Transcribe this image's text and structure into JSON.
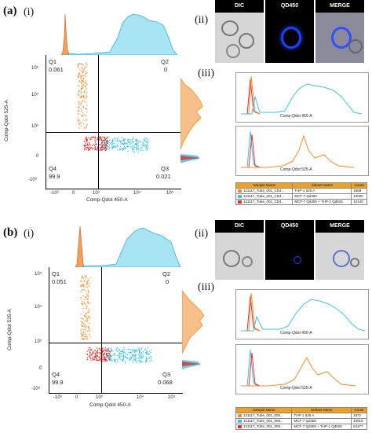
{
  "panel_a": {
    "label": "(a)",
    "label_i": "(i)",
    "label_ii": "(ii)",
    "label_iii": "(iii)",
    "quadrants": {
      "q1": "Q1",
      "q1_val": "0.061",
      "q2": "Q2",
      "q2_val": "0",
      "q3": "Q3",
      "q3_val": "0.021",
      "q4": "Q4",
      "q4_val": "99.9"
    },
    "x_axis_label": "Comp-Qdot 450-A",
    "y_axis_label": "Comp-Qdot 525-A",
    "x_ticks": [
      "-10³",
      "0",
      "10³",
      "10⁴",
      "10⁵"
    ],
    "y_ticks": [
      "10⁵",
      "10⁴",
      "10³",
      "0",
      "-10³"
    ],
    "micro_titles": [
      "DIC",
      "QD450",
      "MERGE"
    ],
    "hist_top_axis": "Comp-Qdot 450-A",
    "hist_bottom_axis": "Comp-Qdot 525-A",
    "table_headers": [
      "Sample Name",
      "Subset Name",
      "Count"
    ],
    "table_rows": [
      {
        "color": "#f08a30",
        "sample": "121117_Tube_001_CD4...",
        "subset": "THP-1 525 A",
        "count": "1868"
      },
      {
        "color": "#3fc0e0",
        "sample": "121117_Tube_001_CD4...",
        "subset": "MCF-7 Qd450",
        "count": "10000"
      },
      {
        "color": "#e03030",
        "sample": "121117_Tube_001_CD4...",
        "subset": "MCF-7 Qd450 + THP-1 Qd525",
        "count": "10140"
      }
    ]
  },
  "panel_b": {
    "label": "(b)",
    "label_i": "(i)",
    "label_ii": "(ii)",
    "label_iii": "(iii)",
    "quadrants": {
      "q1": "Q1",
      "q1_val": "0.051",
      "q2": "Q2",
      "q2_val": "0",
      "q3": "Q3",
      "q3_val": "0.068",
      "q4": "Q4",
      "q4_val": "99.9"
    },
    "x_axis_label": "Comp-Qdot 450-A",
    "y_axis_label": "Comp-Qdot 525-A",
    "x_ticks": [
      "-10³",
      "0",
      "10³",
      "10⁴",
      "10⁵"
    ],
    "y_ticks": [
      "10⁵",
      "10⁴",
      "10³",
      "0",
      "-10³"
    ],
    "micro_titles": [
      "DIC",
      "QD450",
      "MERGE"
    ],
    "hist_top_axis": "Comp-Qdot 450-A",
    "hist_bottom_axis": "Comp-Qdot 525-A",
    "table_headers": [
      "Sample Name",
      "Subset Name",
      "Count"
    ],
    "table_rows": [
      {
        "color": "#f08a30",
        "sample": "121117_Tube_001_005...",
        "subset": "THP-1 525 A",
        "count": "1872"
      },
      {
        "color": "#3fc0e0",
        "sample": "121117_Tube_001_005...",
        "subset": "MCF-7 Qd450",
        "count": "10018"
      },
      {
        "color": "#e03030",
        "sample": "121117_Tube_001_005...",
        "subset": "MCF-7 Qd450 + THP-1 Qd525",
        "count": "64377"
      }
    ]
  },
  "colors": {
    "orange": "#f08a30",
    "cyan": "#3fc0e0",
    "red": "#e03030",
    "blue": "#2040ff"
  }
}
